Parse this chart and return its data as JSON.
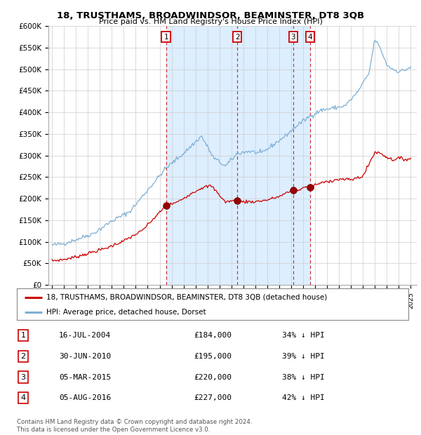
{
  "title": "18, TRUSTHAMS, BROADWINDSOR, BEAMINSTER, DT8 3QB",
  "subtitle": "Price paid vs. HM Land Registry's House Price Index (HPI)",
  "legend_label_red": "18, TRUSTHAMS, BROADWINDSOR, BEAMINSTER, DT8 3QB (detached house)",
  "legend_label_blue": "HPI: Average price, detached house, Dorset",
  "footer1": "Contains HM Land Registry data © Crown copyright and database right 2024.",
  "footer2": "This data is licensed under the Open Government Licence v3.0.",
  "transactions": [
    {
      "num": 1,
      "date": "16-JUL-2004",
      "price": 184000,
      "pct": "34% ↓ HPI",
      "x_year": 2004.54
    },
    {
      "num": 2,
      "date": "30-JUN-2010",
      "price": 195000,
      "pct": "39% ↓ HPI",
      "x_year": 2010.49
    },
    {
      "num": 3,
      "date": "05-MAR-2015",
      "price": 220000,
      "pct": "38% ↓ HPI",
      "x_year": 2015.17
    },
    {
      "num": 4,
      "date": "05-AUG-2016",
      "price": 227000,
      "pct": "42% ↓ HPI",
      "x_year": 2016.59
    }
  ],
  "shaded_region": [
    2004.54,
    2016.59
  ],
  "ylim": [
    0,
    600000
  ],
  "xlim_start": 1994.7,
  "xlim_end": 2025.5,
  "yticks": [
    0,
    50000,
    100000,
    150000,
    200000,
    250000,
    300000,
    350000,
    400000,
    450000,
    500000,
    550000,
    600000
  ],
  "ytick_labels": [
    "£0",
    "£50K",
    "£100K",
    "£150K",
    "£200K",
    "£250K",
    "£300K",
    "£350K",
    "£400K",
    "£450K",
    "£500K",
    "£550K",
    "£600K"
  ],
  "xticks": [
    1995,
    1996,
    1997,
    1998,
    1999,
    2000,
    2001,
    2002,
    2003,
    2004,
    2005,
    2006,
    2007,
    2008,
    2009,
    2010,
    2011,
    2012,
    2013,
    2014,
    2015,
    2016,
    2017,
    2018,
    2019,
    2020,
    2021,
    2022,
    2023,
    2024,
    2025
  ],
  "bg_color": "#ffffff",
  "plot_bg": "#ffffff",
  "red_color": "#cc0000",
  "blue_color": "#7eb0d5",
  "shaded_color": "#ddeeff",
  "grid_color": "#cccccc",
  "table_rows": [
    {
      "num": "1",
      "date": "16-JUL-2004",
      "price": "£184,000",
      "pct": "34% ↓ HPI"
    },
    {
      "num": "2",
      "date": "30-JUN-2010",
      "price": "£195,000",
      "pct": "39% ↓ HPI"
    },
    {
      "num": "3",
      "date": "05-MAR-2015",
      "price": "£220,000",
      "pct": "38% ↓ HPI"
    },
    {
      "num": "4",
      "date": "05-AUG-2016",
      "price": "£227,000",
      "pct": "42% ↓ HPI"
    }
  ]
}
